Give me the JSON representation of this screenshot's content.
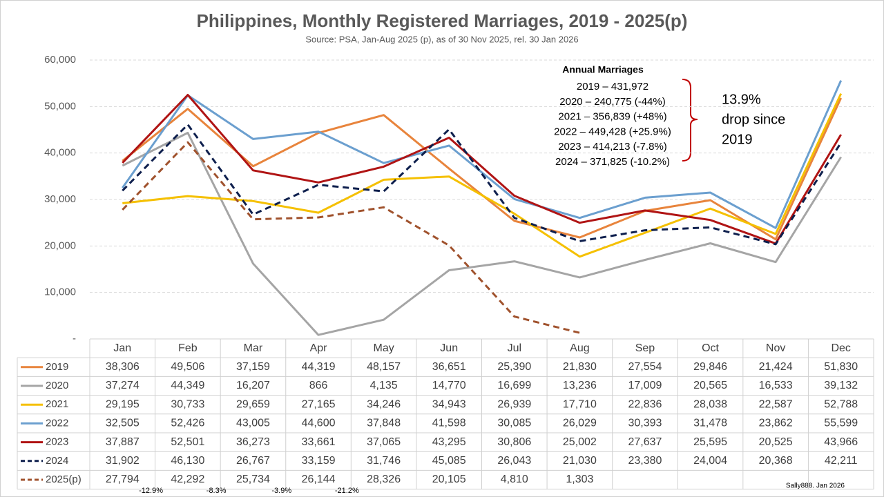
{
  "chart_data": {
    "type": "line",
    "title": "Philippines, Monthly Registered Marriages, 2019 - 2025(p)",
    "subtitle": "Source: PSA, Jan-Aug 2025 (p), as of 30 Nov 2025, rel. 30 Jan 2026",
    "categories": [
      "Jan",
      "Feb",
      "Mar",
      "Apr",
      "May",
      "Jun",
      "Jul",
      "Aug",
      "Sep",
      "Oct",
      "Nov",
      "Dec"
    ],
    "ylim": [
      0,
      60000
    ],
    "yticks": [
      {
        "value": 0,
        "label": "-"
      },
      {
        "value": 10000,
        "label": "10,000"
      },
      {
        "value": 20000,
        "label": "20,000"
      },
      {
        "value": 30000,
        "label": "30,000"
      },
      {
        "value": 40000,
        "label": "40,000"
      },
      {
        "value": 50000,
        "label": "50,000"
      },
      {
        "value": 60000,
        "label": "60,000"
      }
    ],
    "grid": true,
    "series": [
      {
        "name": "2019",
        "color": "#e8843c",
        "dashed": false,
        "values": [
          38306,
          49506,
          37159,
          44319,
          48157,
          36651,
          25390,
          21830,
          27554,
          29846,
          21424,
          51830
        ],
        "value_labels": [
          "38,306",
          "49,506",
          "37,159",
          "44,319",
          "48,157",
          "36,651",
          "25,390",
          "21,830",
          "27,554",
          "29,846",
          "21,424",
          "51,830"
        ]
      },
      {
        "name": "2020",
        "color": "#a5a5a5",
        "dashed": false,
        "values": [
          37274,
          44349,
          16207,
          866,
          4135,
          14770,
          16699,
          13236,
          17009,
          20565,
          16533,
          39132
        ],
        "value_labels": [
          "37,274",
          "44,349",
          "16,207",
          "866",
          "4,135",
          "14,770",
          "16,699",
          "13,236",
          "17,009",
          "20,565",
          "16,533",
          "39,132"
        ]
      },
      {
        "name": "2021",
        "color": "#f5c000",
        "dashed": false,
        "values": [
          29195,
          30733,
          29659,
          27165,
          34246,
          34943,
          26939,
          17710,
          22836,
          28038,
          22587,
          52788
        ],
        "value_labels": [
          "29,195",
          "30,733",
          "29,659",
          "27,165",
          "34,246",
          "34,943",
          "26,939",
          "17,710",
          "22,836",
          "28,038",
          "22,587",
          "52,788"
        ]
      },
      {
        "name": "2022",
        "color": "#6b9fcf",
        "dashed": false,
        "values": [
          32505,
          52426,
          43005,
          44600,
          37848,
          41598,
          30085,
          26029,
          30393,
          31478,
          23862,
          55599
        ],
        "value_labels": [
          "32,505",
          "52,426",
          "43,005",
          "44,600",
          "37,848",
          "41,598",
          "30,085",
          "26,029",
          "30,393",
          "31,478",
          "23,862",
          "55,599"
        ]
      },
      {
        "name": "2023",
        "color": "#b01414",
        "dashed": false,
        "values": [
          37887,
          52501,
          36273,
          33661,
          37065,
          43295,
          30806,
          25002,
          27637,
          25595,
          20525,
          43966
        ],
        "value_labels": [
          "37,887",
          "52,501",
          "36,273",
          "33,661",
          "37,065",
          "43,295",
          "30,806",
          "25,002",
          "27,637",
          "25,595",
          "20,525",
          "43,966"
        ]
      },
      {
        "name": "2024",
        "color": "#0e1f4d",
        "dashed": true,
        "values": [
          31902,
          46130,
          26767,
          33159,
          31746,
          45085,
          26043,
          21030,
          23380,
          24004,
          20368,
          42211
        ],
        "value_labels": [
          "31,902",
          "46,130",
          "26,767",
          "33,159",
          "31,746",
          "45,085",
          "26,043",
          "21,030",
          "23,380",
          "24,004",
          "20,368",
          "42,211"
        ]
      },
      {
        "name": "2025(p)",
        "color": "#a0522d",
        "dashed": true,
        "values": [
          27794,
          42292,
          25734,
          26144,
          28326,
          20105,
          4810,
          1303,
          null,
          null,
          null,
          null
        ],
        "value_labels": [
          "27,794",
          "42,292",
          "25,734",
          "26,144",
          "28,326",
          "20,105",
          "4,810",
          "1,303",
          null,
          null,
          null,
          null
        ]
      }
    ],
    "change_labels": [
      "-12.9%",
      "-8.3%",
      "-3.9%",
      "-21.2%"
    ],
    "annual_box": {
      "title": "Annual Marriages",
      "lines": [
        "2019 – 431,972",
        "2020 – 240,775 (-44%)",
        "2021 – 356,839 (+48%)",
        "2022 – 449,428 (+25.9%)",
        "2023 – 414,213 (-7.8%)",
        "2024 – 371,825 (-10.2%)"
      ]
    },
    "callout": [
      "13.9%",
      "drop since",
      "2019"
    ],
    "credit": "Sally888. Jan 2026"
  }
}
